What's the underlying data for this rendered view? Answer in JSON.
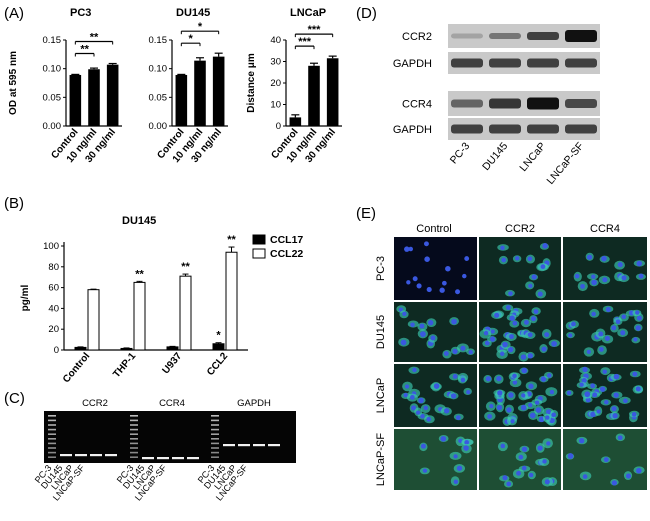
{
  "panels": {
    "A": {
      "letter": "(A)",
      "y_labels": {
        "od": "OD at 595 nm",
        "dist": "Distance μm"
      },
      "charts": [
        {
          "title": "PC3",
          "categories": [
            "Control",
            "10 ng/ml",
            "30 ng/ml"
          ],
          "values": [
            0.089,
            0.099,
            0.107
          ],
          "errors": [
            0.001,
            0.002,
            0.002
          ],
          "ylim": [
            0,
            0.15
          ],
          "yticks": [
            "0.00",
            "0.05",
            "0.10",
            "0.15"
          ],
          "ylabel": "OD at 595 nm",
          "sig": [
            {
              "from": 0,
              "to": 1,
              "label": "**"
            },
            {
              "from": 0,
              "to": 2,
              "label": "**"
            }
          ]
        },
        {
          "title": "DU145",
          "categories": [
            "Control",
            "10 ng/ml",
            "30 ng/ml"
          ],
          "values": [
            0.089,
            0.114,
            0.121
          ],
          "errors": [
            0.001,
            0.005,
            0.006
          ],
          "ylim": [
            0,
            0.15
          ],
          "yticks": [
            "0.00",
            "0.05",
            "0.10",
            "0.15"
          ],
          "ylabel": "",
          "sig": [
            {
              "from": 0,
              "to": 1,
              "label": "*"
            },
            {
              "from": 0,
              "to": 2,
              "label": "*"
            }
          ]
        },
        {
          "title": "LNCaP",
          "categories": [
            "Control",
            "10 ng/ml",
            "30 ng/ml"
          ],
          "values": [
            4,
            28,
            31.5
          ],
          "errors": [
            1.2,
            1.2,
            1
          ],
          "ylim": [
            0,
            40
          ],
          "yticks": [
            "0",
            "10",
            "20",
            "30",
            "40"
          ],
          "ylabel": "Distance μm",
          "sig": [
            {
              "from": 0,
              "to": 1,
              "label": "***"
            },
            {
              "from": 0,
              "to": 2,
              "label": "***"
            }
          ]
        }
      ]
    },
    "B": {
      "letter": "(B)",
      "title": "DU145",
      "ylabel": "pg/ml",
      "categories": [
        "Control",
        "THP-1",
        "U937",
        "CCL2"
      ],
      "ylim": [
        0,
        100
      ],
      "yticks": [
        "0",
        "20",
        "40",
        "60",
        "80",
        "100"
      ],
      "series": [
        {
          "name": "CCL17",
          "color": "#000000",
          "values": [
            2.5,
            1.5,
            3,
            6
          ],
          "errors": [
            0.5,
            0.5,
            0.5,
            1
          ]
        },
        {
          "name": "CCL22",
          "color": "#ffffff",
          "values": [
            58,
            65,
            71,
            94
          ],
          "errors": [
            0.5,
            1,
            2,
            5
          ]
        }
      ],
      "sig": [
        {
          "cat": 1,
          "series": 1,
          "label": "**"
        },
        {
          "cat": 2,
          "series": 1,
          "label": "**"
        },
        {
          "cat": 3,
          "series": 0,
          "label": "*"
        },
        {
          "cat": 3,
          "series": 1,
          "label": "**"
        }
      ]
    },
    "C": {
      "letter": "(C)",
      "group_titles": [
        "CCR2",
        "CCR4",
        "GAPDH"
      ],
      "lane_labels": [
        "PC-3",
        "DU145",
        "LNCaP",
        "LNCaP-SF"
      ]
    },
    "D": {
      "letter": "(D)",
      "band_labels": [
        "CCR2",
        "GAPDH",
        "CCR4",
        "GAPDH"
      ],
      "lane_labels": [
        "PC-3",
        "DU145",
        "LNCaP",
        "LNCaP-SF"
      ]
    },
    "E": {
      "letter": "(E)",
      "col_labels": [
        "Control",
        "CCR2",
        "CCR4"
      ],
      "row_labels": [
        "PC-3",
        "DU145",
        "LNCaP",
        "LNCaP-SF"
      ],
      "colors": {
        "background": "#0e2a22",
        "nuclei": "#3a58e0",
        "stain": "#3cc9b0"
      }
    }
  }
}
